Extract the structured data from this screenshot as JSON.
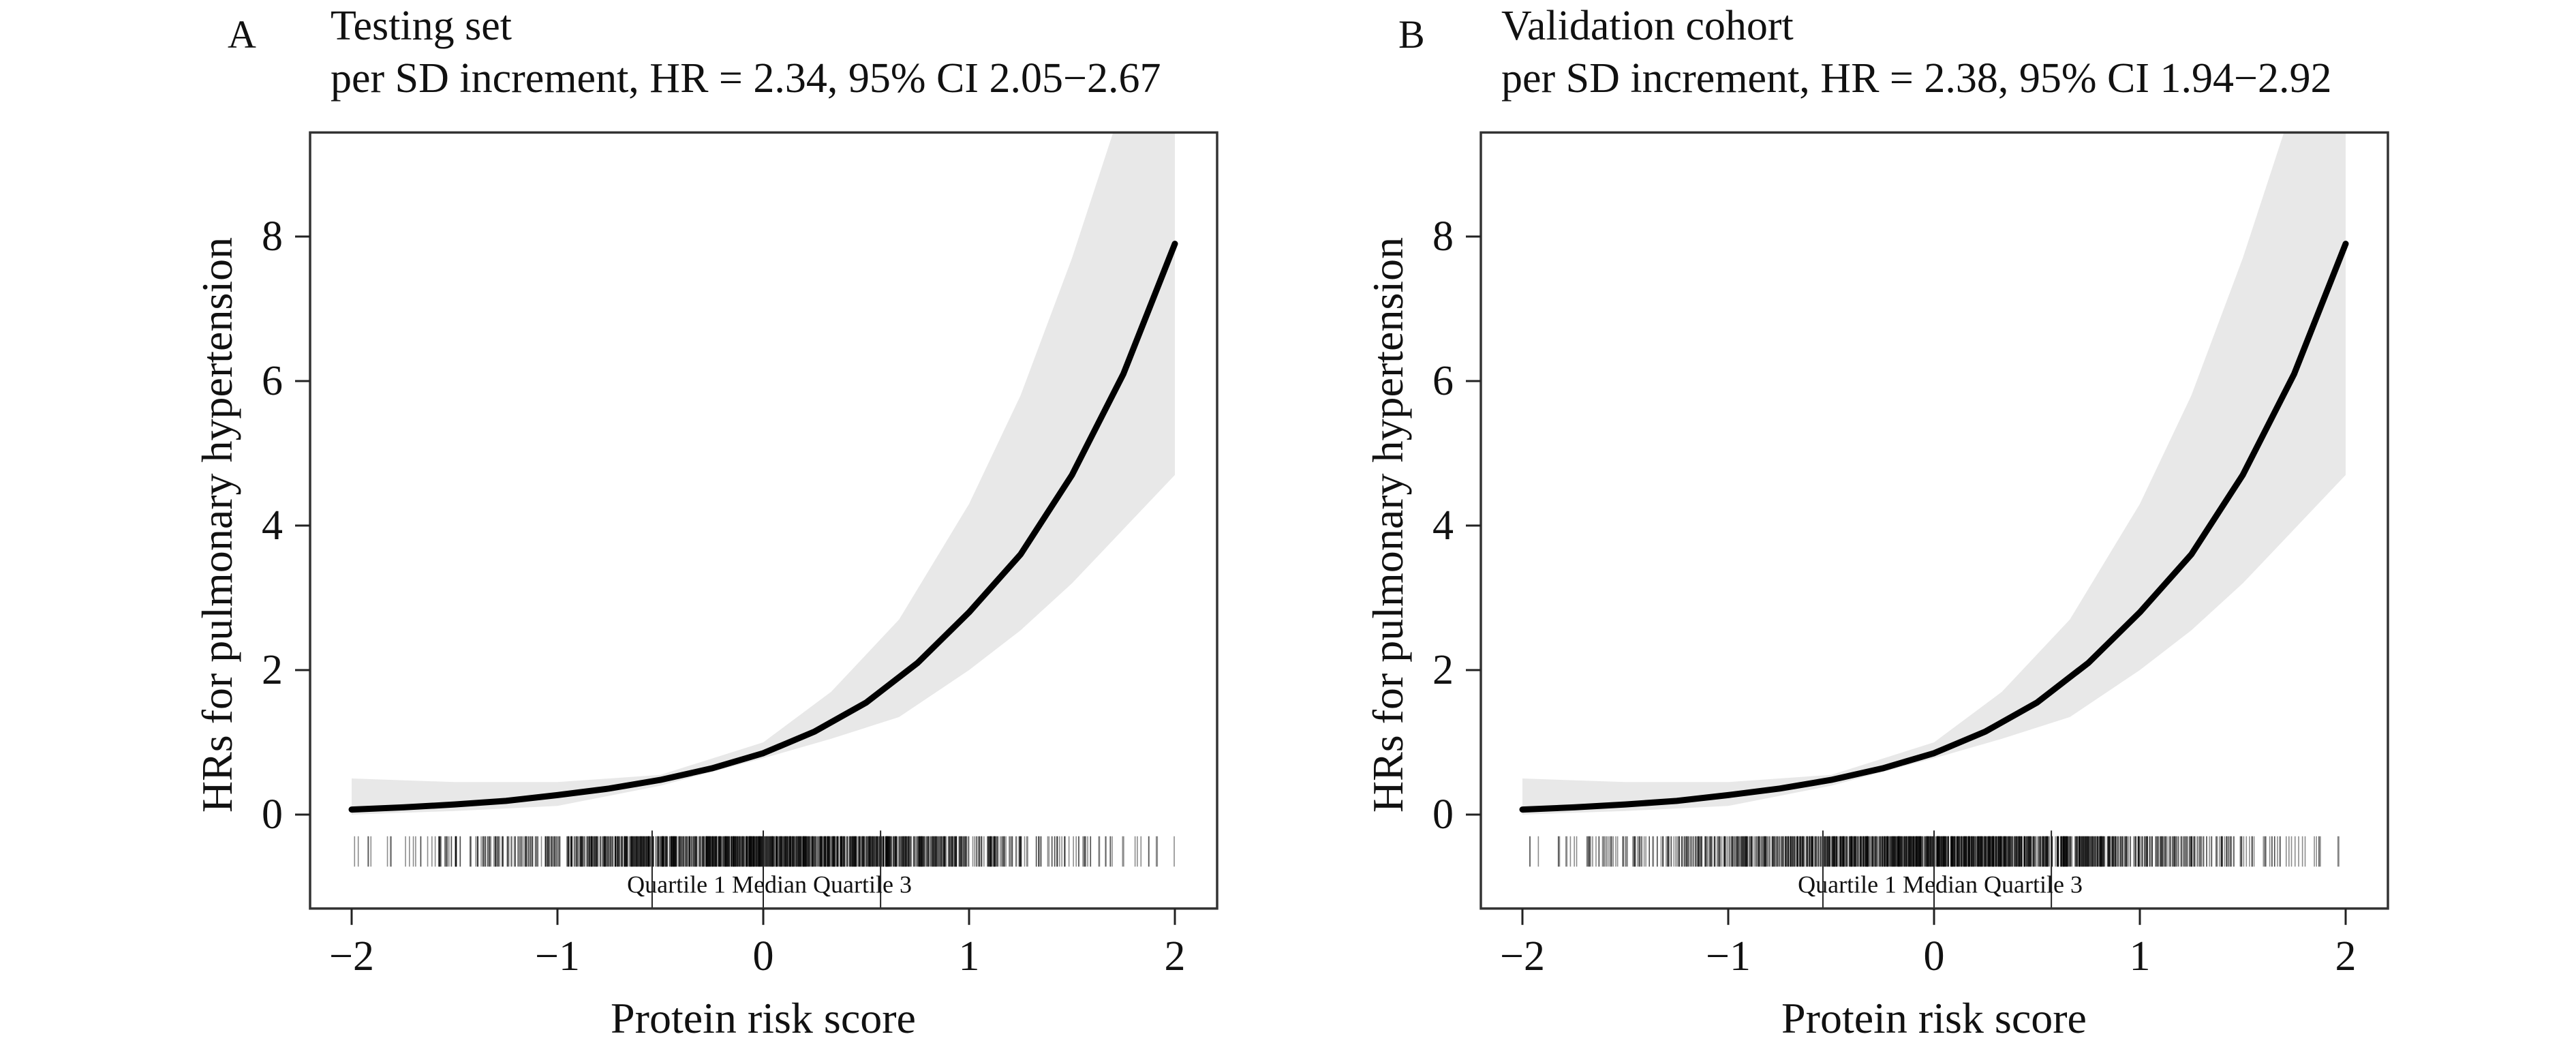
{
  "chart_data": [
    {
      "type": "line",
      "panel_label": "A",
      "title": "Testing set",
      "subtitle": "per SD increment, HR = 2.34, 95% CI 2.05−2.67",
      "xlabel": "Protein risk score",
      "ylabel": "HRs for pulmonary hypertension",
      "xlim": [
        -2,
        2
      ],
      "ylim": [
        -1.3,
        9.44
      ],
      "xticks": [
        -2,
        -1,
        0,
        1,
        2
      ],
      "xtick_labels": [
        "−2",
        "−1",
        "0",
        "1",
        "2"
      ],
      "yticks": [
        0,
        2,
        4,
        6,
        8
      ],
      "ytick_labels": [
        "0",
        "2",
        "4",
        "6",
        "8"
      ],
      "grid": false,
      "curve": {
        "x": [
          -2,
          -1.75,
          -1.5,
          -1.25,
          -1,
          -0.75,
          -0.5,
          -0.25,
          0,
          0.25,
          0.5,
          0.75,
          1,
          1.25,
          1.5,
          1.75,
          2
        ],
        "y": [
          0.07,
          0.1,
          0.14,
          0.19,
          0.27,
          0.36,
          0.48,
          0.64,
          0.85,
          1.15,
          1.55,
          2.1,
          2.8,
          3.6,
          4.7,
          6.1,
          7.9
        ]
      },
      "ci_band": {
        "x": [
          -2,
          -1.5,
          -1,
          -0.5,
          0,
          0.33,
          0.66,
          1,
          1.25,
          1.5,
          1.7,
          2
        ],
        "upper": [
          0.5,
          0.45,
          0.45,
          0.55,
          1.0,
          1.7,
          2.7,
          4.3,
          5.8,
          7.7,
          9.44,
          9.44
        ],
        "lower": [
          0.0,
          0.05,
          0.12,
          0.4,
          0.78,
          1.05,
          1.35,
          2.0,
          2.55,
          3.2,
          3.8,
          4.7
        ]
      },
      "rug_quartiles": {
        "q1": -0.54,
        "median": 0.0,
        "q3": 0.57
      },
      "rug_label": "Quartile 1 Median  Quartile 3",
      "colors": {
        "curve": "#000000",
        "band": "#e8e8e8",
        "rug": "#000000"
      }
    },
    {
      "type": "line",
      "panel_label": "B",
      "title": "Validation cohort",
      "subtitle": "per SD increment, HR = 2.38, 95% CI 1.94−2.92",
      "xlabel": "Protein risk score",
      "ylabel": "HRs for pulmonary hypertension",
      "xlim": [
        -2,
        2
      ],
      "ylim": [
        -1.3,
        9.44
      ],
      "xticks": [
        -2,
        -1,
        0,
        1,
        2
      ],
      "xtick_labels": [
        "−2",
        "−1",
        "0",
        "1",
        "2"
      ],
      "yticks": [
        0,
        2,
        4,
        6,
        8
      ],
      "ytick_labels": [
        "0",
        "2",
        "4",
        "6",
        "8"
      ],
      "grid": false,
      "curve": {
        "x": [
          -2,
          -1.75,
          -1.5,
          -1.25,
          -1,
          -0.75,
          -0.5,
          -0.25,
          0,
          0.25,
          0.5,
          0.75,
          1,
          1.25,
          1.5,
          1.75,
          2
        ],
        "y": [
          0.07,
          0.1,
          0.14,
          0.19,
          0.27,
          0.36,
          0.48,
          0.64,
          0.85,
          1.15,
          1.55,
          2.1,
          2.8,
          3.6,
          4.7,
          6.1,
          7.9
        ]
      },
      "ci_band": {
        "x": [
          -2,
          -1.5,
          -1,
          -0.5,
          0,
          0.33,
          0.66,
          1,
          1.25,
          1.5,
          1.7,
          2
        ],
        "upper": [
          0.5,
          0.45,
          0.45,
          0.55,
          1.0,
          1.7,
          2.7,
          4.3,
          5.8,
          7.7,
          9.44,
          9.44
        ],
        "lower": [
          0.0,
          0.05,
          0.12,
          0.4,
          0.78,
          1.05,
          1.35,
          2.0,
          2.55,
          3.2,
          3.8,
          4.7
        ]
      },
      "rug_quartiles": {
        "q1": -0.54,
        "median": 0.0,
        "q3": 0.57
      },
      "rug_label": "Quartile 1 Median  Quartile 3",
      "colors": {
        "curve": "#000000",
        "band": "#e8e8e8",
        "rug": "#000000"
      }
    }
  ]
}
